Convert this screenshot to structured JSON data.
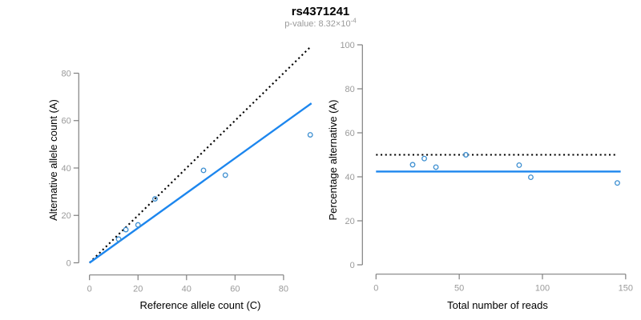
{
  "figure": {
    "title": "rs4371241",
    "subtitle": {
      "prefix": "p-value: 8.32×10",
      "exponent": "-4"
    },
    "colors": {
      "fit_line_blue": "#1c86ee",
      "point_blue": "#3d8fd1",
      "dotted_line_black": "#000000",
      "axis_gray": "#808080",
      "tick_label_gray": "#9a9a9a",
      "axis_title_black": "#000000"
    }
  },
  "chart_data": [
    {
      "type": "scatter",
      "name": "allele-counts-panel",
      "xlabel": "Reference allele count (C)",
      "ylabel": "Alternative allele count (A)",
      "xticks": [
        0,
        20,
        40,
        60,
        80
      ],
      "yticks": [
        0,
        20,
        40,
        60,
        80
      ],
      "xlim": [
        0,
        93
      ],
      "ylim": [
        0,
        92
      ],
      "grid": false,
      "points": {
        "x": [
          12,
          15,
          20,
          27,
          47,
          56,
          91
        ],
        "y": [
          10,
          14,
          16,
          27,
          39,
          37,
          54
        ]
      },
      "lines": [
        {
          "name": "identity-line",
          "style": "dotted",
          "color_key": "dotted_line_black",
          "x1": 0,
          "y1": 0,
          "x2": 91,
          "y2": 91
        },
        {
          "name": "fit-line",
          "style": "solid",
          "color_key": "fit_line_blue",
          "x1": 0,
          "y1": 0,
          "x2": 91.5,
          "y2": 67.3
        }
      ]
    },
    {
      "type": "scatter",
      "name": "percentage-panel",
      "xlabel": "Total number of reads",
      "ylabel": "Percentage alternative (A)",
      "xticks": [
        0,
        50,
        100,
        150
      ],
      "yticks": [
        0,
        20,
        40,
        60,
        80,
        100
      ],
      "xlim": [
        0,
        150
      ],
      "ylim": [
        0,
        100
      ],
      "grid": false,
      "points": {
        "x": [
          22,
          29,
          36,
          54,
          86,
          93,
          145
        ],
        "y": [
          45.5,
          48.3,
          44.4,
          50.0,
          45.3,
          39.8,
          37.2
        ]
      },
      "lines": [
        {
          "name": "fifty-percent-line",
          "style": "dotted",
          "color_key": "dotted_line_black",
          "x1": 0,
          "y1": 50,
          "x2": 145,
          "y2": 50
        },
        {
          "name": "mean-percentage-line",
          "style": "solid",
          "color_key": "fit_line_blue",
          "x1": 0,
          "y1": 42.4,
          "x2": 147,
          "y2": 42.4
        }
      ]
    }
  ]
}
